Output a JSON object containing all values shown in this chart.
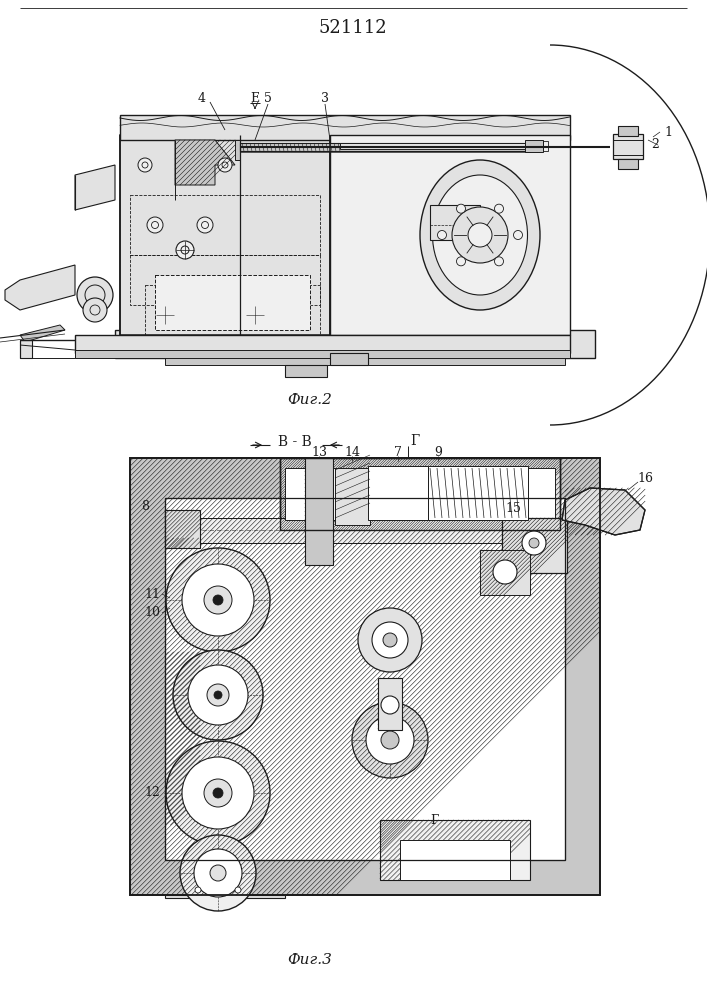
{
  "title": "521112",
  "fig2_label": "Фиг.2",
  "fig3_label": "Фиг.3",
  "bg": "#ffffff",
  "ink": "#1c1c1c",
  "gray1": "#c8c8c8",
  "gray2": "#e2e2e2",
  "gray3": "#f0f0f0"
}
